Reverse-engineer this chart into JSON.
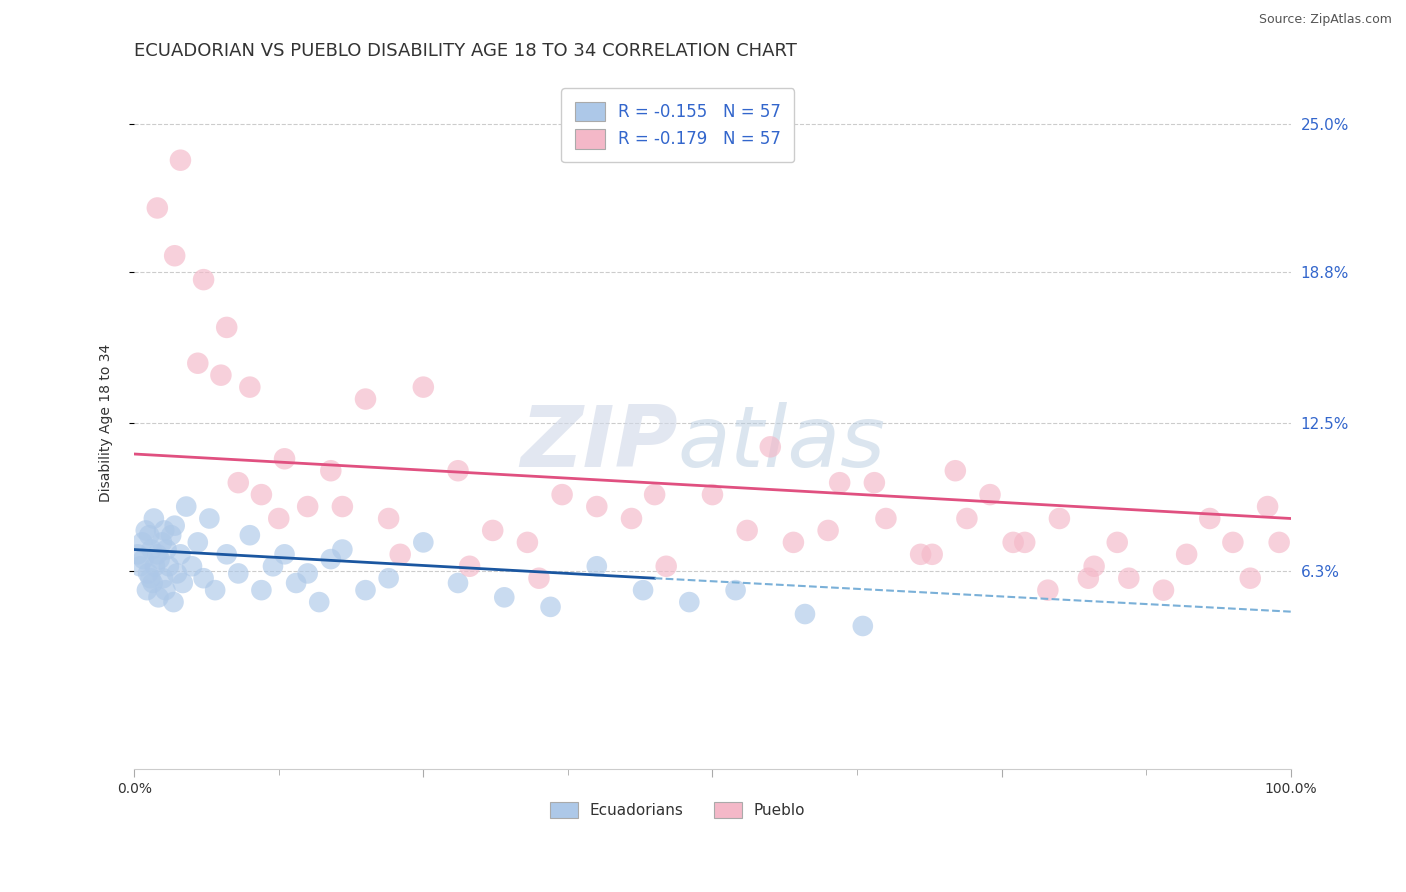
{
  "title": "ECUADORIAN VS PUEBLO DISABILITY AGE 18 TO 34 CORRELATION CHART",
  "source": "Source: ZipAtlas.com",
  "ylabel": "Disability Age 18 to 34",
  "ytick_labels": [
    "6.3%",
    "12.5%",
    "18.8%",
    "25.0%"
  ],
  "ytick_values": [
    6.3,
    12.5,
    18.8,
    25.0
  ],
  "xlim": [
    0.0,
    100.0
  ],
  "ylim": [
    -2.0,
    27.0
  ],
  "ecuadorian_color": "#adc8e8",
  "pueblo_color": "#f4b8c8",
  "trendline_blue": "#1a56a0",
  "trendline_pink": "#e05080",
  "trendline_dashed_color": "#7ab0d8",
  "background_color": "#ffffff",
  "title_fontsize": 13,
  "axis_label_fontsize": 10,
  "legend_fontsize": 11,
  "ecuadorians_x": [
    0.3,
    0.5,
    0.7,
    0.8,
    1.0,
    1.1,
    1.2,
    1.3,
    1.4,
    1.5,
    1.6,
    1.7,
    1.8,
    2.0,
    2.1,
    2.2,
    2.4,
    2.5,
    2.6,
    2.7,
    2.8,
    3.0,
    3.2,
    3.4,
    3.5,
    3.7,
    4.0,
    4.2,
    4.5,
    5.0,
    5.5,
    6.0,
    6.5,
    7.0,
    8.0,
    9.0,
    10.0,
    11.0,
    12.0,
    13.0,
    14.0,
    15.0,
    16.0,
    17.0,
    18.0,
    20.0,
    22.0,
    25.0,
    28.0,
    32.0,
    36.0,
    40.0,
    44.0,
    48.0,
    52.0,
    58.0,
    63.0
  ],
  "ecuadorians_y": [
    7.0,
    6.5,
    7.5,
    6.8,
    8.0,
    5.5,
    6.2,
    7.8,
    6.0,
    7.2,
    5.8,
    8.5,
    6.5,
    7.0,
    5.2,
    6.8,
    7.5,
    6.0,
    8.0,
    5.5,
    7.2,
    6.5,
    7.8,
    5.0,
    8.2,
    6.2,
    7.0,
    5.8,
    9.0,
    6.5,
    7.5,
    6.0,
    8.5,
    5.5,
    7.0,
    6.2,
    7.8,
    5.5,
    6.5,
    7.0,
    5.8,
    6.2,
    5.0,
    6.8,
    7.2,
    5.5,
    6.0,
    7.5,
    5.8,
    5.2,
    4.8,
    6.5,
    5.5,
    5.0,
    5.5,
    4.5,
    4.0
  ],
  "pueblo_x": [
    2.0,
    3.5,
    5.5,
    7.5,
    9.0,
    11.0,
    13.0,
    15.0,
    17.0,
    20.0,
    22.0,
    25.0,
    28.0,
    31.0,
    34.0,
    37.0,
    40.0,
    43.0,
    46.0,
    50.0,
    53.0,
    57.0,
    61.0,
    65.0,
    68.0,
    71.0,
    74.0,
    77.0,
    80.0,
    83.0,
    86.0,
    89.0,
    91.0,
    93.0,
    95.0,
    96.5,
    98.0,
    99.0,
    4.0,
    6.0,
    8.0,
    10.0,
    12.5,
    18.0,
    23.0,
    29.0,
    35.0,
    45.0,
    55.0,
    60.0,
    64.0,
    69.0,
    72.0,
    76.0,
    79.0,
    82.5,
    85.0
  ],
  "pueblo_y": [
    21.5,
    19.5,
    15.0,
    14.5,
    10.0,
    9.5,
    11.0,
    9.0,
    10.5,
    13.5,
    8.5,
    14.0,
    10.5,
    8.0,
    7.5,
    9.5,
    9.0,
    8.5,
    6.5,
    9.5,
    8.0,
    7.5,
    10.0,
    8.5,
    7.0,
    10.5,
    9.5,
    7.5,
    8.5,
    6.5,
    6.0,
    5.5,
    7.0,
    8.5,
    7.5,
    6.0,
    9.0,
    7.5,
    23.5,
    18.5,
    16.5,
    14.0,
    8.5,
    9.0,
    7.0,
    6.5,
    6.0,
    9.5,
    11.5,
    8.0,
    10.0,
    7.0,
    8.5,
    7.5,
    5.5,
    6.0,
    7.5
  ],
  "pink_trend_x0": 0.0,
  "pink_trend_y0": 11.2,
  "pink_trend_x1": 100.0,
  "pink_trend_y1": 8.5,
  "blue_solid_x0": 0.0,
  "blue_solid_y0": 7.2,
  "blue_solid_x1": 45.0,
  "blue_solid_y1": 6.0,
  "blue_dash_x0": 45.0,
  "blue_dash_y0": 6.0,
  "blue_dash_x1": 100.0,
  "blue_dash_y1": 4.6
}
